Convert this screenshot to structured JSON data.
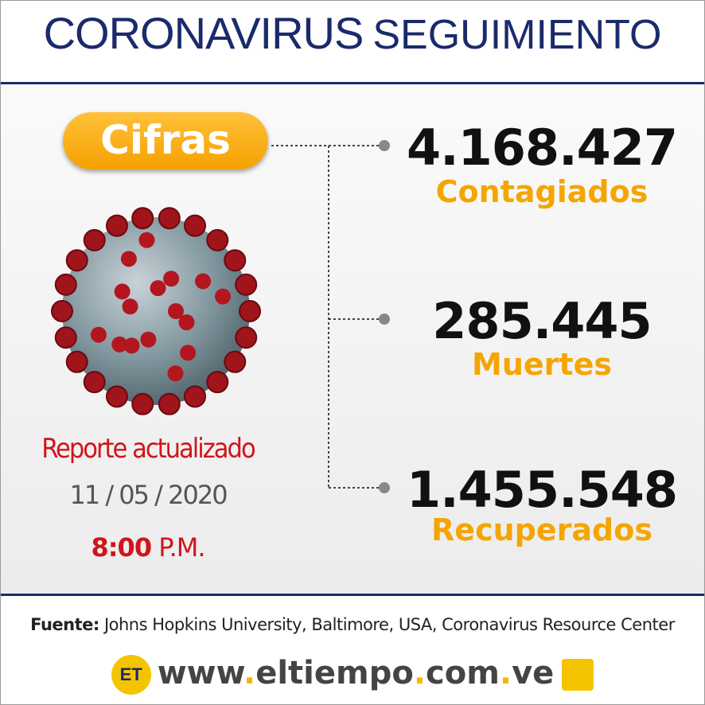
{
  "header": {
    "title": "CORONAVIRUS",
    "subtitle": "SEGUIMIENTO"
  },
  "badge": "Cifras",
  "stats": [
    {
      "value": "4.168.427",
      "label": "Contagiados"
    },
    {
      "value": "285.445",
      "label": "Muertes"
    },
    {
      "value": "1.455.548",
      "label": "Recuperados"
    }
  ],
  "report": {
    "label": "Reporte actualizado",
    "date": "11 / 05 / 2020",
    "time": "8:00",
    "period": "P.M."
  },
  "footer": {
    "source_label": "Fuente:",
    "source": "Johns Hopkins University, Baltimore, USA, Coronavirus Resource Center",
    "logo": "ET",
    "website": [
      "www",
      ".",
      "eltiempo",
      ".",
      "com",
      ".",
      "ve"
    ]
  }
}
